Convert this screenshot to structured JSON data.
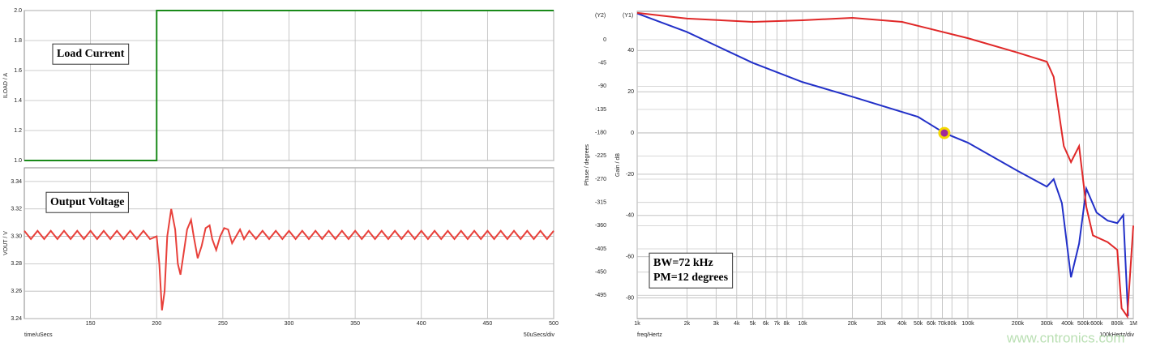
{
  "chart_data": [
    {
      "type": "line",
      "ylabel": "ILOAD / A",
      "xlim": [
        100,
        500
      ],
      "ylim": [
        1,
        2
      ],
      "yticks": [
        {
          "value": 1,
          "label": "1.0"
        },
        {
          "value": 1.2,
          "label": "1.2"
        },
        {
          "value": 1.4,
          "label": "1.4"
        },
        {
          "value": 1.6,
          "label": "1.6"
        },
        {
          "value": 1.8,
          "label": "1.8"
        },
        {
          "value": 2,
          "label": "2.0"
        }
      ],
      "grid": true,
      "annotations": [
        "Load Current"
      ],
      "series": [
        {
          "color": "#1a8a1a",
          "x": [
            100,
            200,
            200,
            500
          ],
          "values": [
            1,
            1,
            2,
            2
          ]
        }
      ]
    },
    {
      "type": "line",
      "ylabel": "VOUT / V",
      "xlabel": "time/uSecs",
      "note": "50uSecs/div",
      "xlim": [
        100,
        500
      ],
      "ylim": [
        3.24,
        3.35
      ],
      "xticks": [
        150,
        200,
        250,
        300,
        350,
        400,
        450,
        500
      ],
      "yticks": [
        3.24,
        3.26,
        3.28,
        {
          "value": 3.3,
          "label": "3.30"
        },
        3.32,
        3.34
      ],
      "grid": true,
      "annotations": [
        "Output Voltage"
      ],
      "series": [
        {
          "color": "#e8403a",
          "x": [
            100,
            105,
            110,
            115,
            120,
            125,
            130,
            135,
            140,
            145,
            150,
            155,
            160,
            165,
            170,
            175,
            180,
            185,
            190,
            195,
            200,
            202,
            204,
            206,
            208,
            211,
            214,
            216,
            218,
            220,
            223,
            226,
            228,
            231,
            234,
            237,
            240,
            242,
            245,
            248,
            251,
            254,
            257,
            260,
            263,
            266,
            270,
            275,
            280,
            285,
            290,
            295,
            300,
            305,
            310,
            315,
            320,
            325,
            330,
            335,
            340,
            345,
            350,
            355,
            360,
            365,
            370,
            375,
            380,
            385,
            390,
            395,
            400,
            405,
            410,
            415,
            420,
            425,
            430,
            435,
            440,
            445,
            450,
            455,
            460,
            465,
            470,
            475,
            480,
            485,
            490,
            495,
            500
          ],
          "values": [
            3.304,
            3.298,
            3.304,
            3.298,
            3.304,
            3.298,
            3.304,
            3.298,
            3.304,
            3.298,
            3.304,
            3.298,
            3.304,
            3.298,
            3.304,
            3.298,
            3.304,
            3.298,
            3.304,
            3.298,
            3.3,
            3.28,
            3.246,
            3.26,
            3.3,
            3.32,
            3.305,
            3.28,
            3.272,
            3.285,
            3.305,
            3.312,
            3.3,
            3.284,
            3.293,
            3.306,
            3.308,
            3.298,
            3.29,
            3.3,
            3.306,
            3.305,
            3.295,
            3.3,
            3.305,
            3.298,
            3.304,
            3.298,
            3.304,
            3.298,
            3.304,
            3.298,
            3.304,
            3.298,
            3.304,
            3.298,
            3.304,
            3.298,
            3.304,
            3.298,
            3.304,
            3.298,
            3.304,
            3.298,
            3.304,
            3.298,
            3.304,
            3.298,
            3.304,
            3.298,
            3.304,
            3.298,
            3.304,
            3.298,
            3.304,
            3.298,
            3.304,
            3.298,
            3.304,
            3.298,
            3.304,
            3.298,
            3.304,
            3.298,
            3.304,
            3.298,
            3.304,
            3.298,
            3.304,
            3.298,
            3.304,
            3.298,
            3.304
          ]
        }
      ]
    },
    {
      "type": "line",
      "xlog": true,
      "xlabel": "freq/Hertz",
      "note": "100kHertz/div",
      "ylabel": "Gain / dB",
      "y2label": "Phase / degrees",
      "ytag": "(Y1)",
      "y2tag": "(Y2)",
      "watermark": "www.cntronics.com",
      "xlim": [
        1000,
        1000000
      ],
      "ylim": [
        -90,
        59
      ],
      "y2lim": [
        -540,
        55
      ],
      "xticks": [
        {
          "value": 1000,
          "label": "1k"
        },
        {
          "value": 2000,
          "label": "2k"
        },
        {
          "value": 3000,
          "label": "3k"
        },
        {
          "value": 4000,
          "label": "4k"
        },
        {
          "value": 5000,
          "label": "5k"
        },
        {
          "value": 6000,
          "label": "6k"
        },
        {
          "value": 7000,
          "label": "7k"
        },
        {
          "value": 8000,
          "label": "8k"
        },
        {
          "value": 10000,
          "label": "10k"
        },
        {
          "value": 20000,
          "label": "20k"
        },
        {
          "value": 30000,
          "label": "30k"
        },
        {
          "value": 40000,
          "label": "40k"
        },
        {
          "value": 50000,
          "label": "50k"
        },
        {
          "value": 60000,
          "label": "60k"
        },
        {
          "value": 70000,
          "label": "70k"
        },
        {
          "value": 80000,
          "label": "80k"
        },
        {
          "value": 100000,
          "label": "100k"
        },
        {
          "value": 200000,
          "label": "200k"
        },
        {
          "value": 300000,
          "label": "300k"
        },
        {
          "value": 400000,
          "label": "400k"
        },
        {
          "value": 500000,
          "label": "500k"
        },
        {
          "value": 600000,
          "label": "600k"
        },
        {
          "value": 800000,
          "label": "800k"
        },
        {
          "value": 1000000,
          "label": "1M"
        }
      ],
      "yticks": [
        40,
        20,
        0,
        -20,
        -40,
        -60,
        -80
      ],
      "y2ticks": [
        0,
        -45,
        -90,
        -135,
        -180,
        -225,
        -270,
        -315,
        -360,
        -405,
        -450,
        -495
      ],
      "grid": true,
      "annotations": [
        "BW=72 kHz",
        "PM=12 degrees"
      ],
      "marker": {
        "x": 72000,
        "y": 0,
        "color": "#a0289a"
      },
      "series": [
        {
          "color": "#2230c8",
          "x": [
            1000,
            2000,
            5000,
            10000,
            20000,
            50000,
            72000,
            100000,
            200000,
            300000,
            330000,
            370000,
            420000,
            470000,
            520000,
            600000,
            700000,
            800000,
            870000,
            930000
          ],
          "values": [
            58,
            49,
            34,
            24.7,
            17.6,
            7.8,
            0,
            -4.7,
            -18.4,
            -26,
            -22.4,
            -34,
            -70,
            -53.7,
            -27,
            -38.6,
            -42.5,
            -43.7,
            -39.8,
            -88.8
          ]
        },
        {
          "color": "#e02828",
          "axis": "y2",
          "x": [
            1000,
            2000,
            5000,
            10000,
            20000,
            40000,
            100000,
            200000,
            300000,
            330000,
            380000,
            420000,
            470000,
            520000,
            570000,
            700000,
            800000,
            850000,
            920000,
            1000000
          ],
          "values": [
            52,
            41,
            34.6,
            37.8,
            42.5,
            34.6,
            3,
            -25,
            -42.5,
            -72,
            -206,
            -237,
            -206,
            -324,
            -379,
            -392,
            -407,
            -520,
            -536,
            -360
          ]
        }
      ]
    }
  ]
}
